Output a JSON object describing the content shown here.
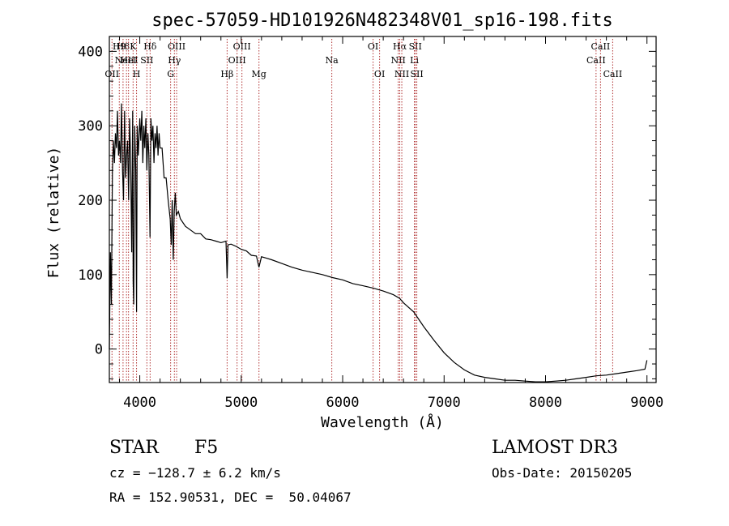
{
  "chart_data": {
    "type": "line",
    "title": "spec-57059-HD101926N482348V01_sp16-198.fits",
    "xlabel": "Wavelength (Å)",
    "ylabel": "Flux (relative)",
    "xlim": [
      3700,
      9090
    ],
    "ylim": [
      -45,
      420
    ],
    "xticks": [
      4000,
      5000,
      6000,
      7000,
      8000,
      9000
    ],
    "yticks": [
      0,
      100,
      200,
      300,
      400
    ],
    "grid": false,
    "series": [
      {
        "name": "spectrum",
        "x": [
          3700,
          3710,
          3720,
          3730,
          3740,
          3750,
          3760,
          3770,
          3780,
          3790,
          3800,
          3810,
          3820,
          3830,
          3840,
          3850,
          3860,
          3870,
          3880,
          3890,
          3900,
          3910,
          3920,
          3930,
          3935,
          3940,
          3950,
          3960,
          3968,
          3975,
          3985,
          4000,
          4010,
          4020,
          4030,
          4040,
          4050,
          4060,
          4070,
          4080,
          4090,
          4101,
          4110,
          4120,
          4130,
          4140,
          4150,
          4160,
          4170,
          4180,
          4190,
          4200,
          4220,
          4240,
          4260,
          4280,
          4300,
          4310,
          4320,
          4330,
          4340,
          4350,
          4360,
          4380,
          4400,
          4450,
          4500,
          4550,
          4600,
          4650,
          4700,
          4750,
          4800,
          4850,
          4861,
          4870,
          4900,
          4950,
          5000,
          5050,
          5100,
          5150,
          5175,
          5200,
          5250,
          5300,
          5400,
          5500,
          5600,
          5700,
          5800,
          5900,
          6000,
          6100,
          6200,
          6300,
          6400,
          6500,
          6563,
          6600,
          6700,
          6800,
          6900,
          7000,
          7100,
          7200,
          7300,
          7400,
          7500,
          7600,
          7700,
          7800,
          7900,
          8000,
          8100,
          8200,
          8300,
          8400,
          8500,
          8600,
          8700,
          8800,
          8900,
          8980,
          9000
        ],
        "y": [
          0,
          130,
          60,
          240,
          280,
          250,
          290,
          270,
          320,
          260,
          280,
          250,
          330,
          240,
          200,
          320,
          230,
          260,
          280,
          200,
          310,
          250,
          130,
          320,
          90,
          60,
          300,
          240,
          50,
          300,
          260,
          310,
          280,
          320,
          250,
          300,
          270,
          310,
          240,
          290,
          260,
          150,
          310,
          280,
          300,
          250,
          290,
          270,
          300,
          260,
          290,
          270,
          270,
          230,
          230,
          200,
          175,
          140,
          200,
          120,
          185,
          210,
          180,
          185,
          175,
          165,
          160,
          155,
          155,
          148,
          147,
          145,
          143,
          145,
          95,
          140,
          141,
          138,
          134,
          132,
          126,
          125,
          110,
          124,
          122,
          120,
          115,
          110,
          106,
          103,
          100,
          96,
          93,
          88,
          85,
          82,
          78,
          73,
          68,
          62,
          50,
          30,
          12,
          -5,
          -18,
          -28,
          -35,
          -38,
          -40,
          -42,
          -42,
          -43,
          -44,
          -44,
          -43,
          -42,
          -40,
          -38,
          -36,
          -35,
          -33,
          -31,
          -29,
          -27,
          -15
        ]
      }
    ],
    "line_markers": [
      {
        "wavelength": 3726,
        "label": "OII",
        "row": 3
      },
      {
        "wavelength": 3798,
        "label": "H9",
        "row": 1
      },
      {
        "wavelength": 3835,
        "label": "H8",
        "row": 1
      },
      {
        "wavelength": 3869,
        "label": "NeIII",
        "row": 2
      },
      {
        "wavelength": 3889,
        "label": "HeI",
        "row": 2
      },
      {
        "wavelength": 3934,
        "label": "K",
        "row": 1
      },
      {
        "wavelength": 3968,
        "label": "H",
        "row": 3
      },
      {
        "wavelength": 4070,
        "label": "SII",
        "row": 2
      },
      {
        "wavelength": 4102,
        "label": "Hδ",
        "row": 1
      },
      {
        "wavelength": 4304,
        "label": "G",
        "row": 3
      },
      {
        "wavelength": 4341,
        "label": "Hγ",
        "row": 2
      },
      {
        "wavelength": 4363,
        "label": "OIII",
        "row": 1
      },
      {
        "wavelength": 4861,
        "label": "Hβ",
        "row": 3
      },
      {
        "wavelength": 4959,
        "label": "OIII",
        "row": 2
      },
      {
        "wavelength": 5007,
        "label": "OIII",
        "row": 1
      },
      {
        "wavelength": 5175,
        "label": "Mg",
        "row": 3
      },
      {
        "wavelength": 5893,
        "label": "Na",
        "row": 2
      },
      {
        "wavelength": 6300,
        "label": "OI",
        "row": 1
      },
      {
        "wavelength": 6364,
        "label": "OI",
        "row": 3
      },
      {
        "wavelength": 6548,
        "label": "NII",
        "row": 2
      },
      {
        "wavelength": 6563,
        "label": "Hα",
        "row": 1
      },
      {
        "wavelength": 6583,
        "label": "NII",
        "row": 3
      },
      {
        "wavelength": 6707,
        "label": "Li",
        "row": 2
      },
      {
        "wavelength": 6716,
        "label": "SII",
        "row": 1
      },
      {
        "wavelength": 6731,
        "label": "SII",
        "row": 3
      },
      {
        "wavelength": 8498,
        "label": "CaII",
        "row": 2
      },
      {
        "wavelength": 8542,
        "label": "CaII",
        "row": 1
      },
      {
        "wavelength": 8662,
        "label": "CaII",
        "row": 3
      }
    ]
  },
  "info": {
    "object_class": "STAR",
    "subclass": "F5",
    "survey": "LAMOST DR3",
    "redshift": "cz = −128.7 ± 6.2 km/s",
    "obs_date": "Obs-Date: 20150205",
    "coords": "RA = 152.90531, DEC =  50.04067"
  },
  "colors": {
    "line": "#000000",
    "marker": "#b03030",
    "background": "#ffffff"
  }
}
